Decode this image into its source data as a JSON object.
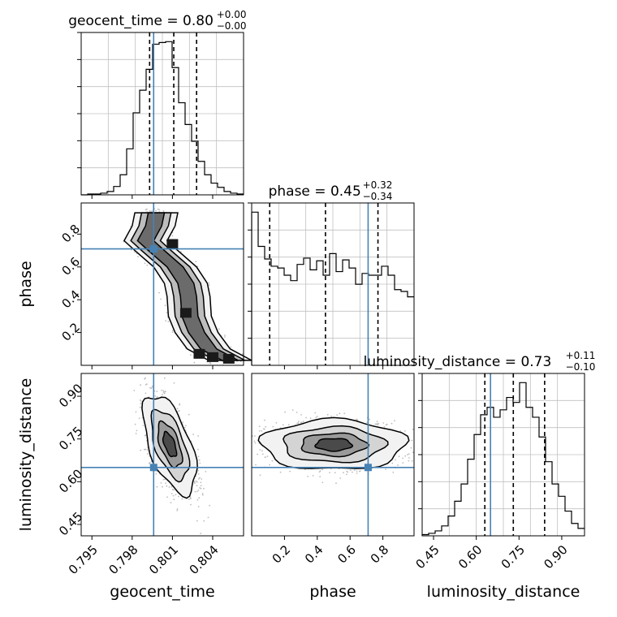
{
  "chart_data": {
    "type": "corner",
    "parameters": [
      "geocent_time",
      "phase",
      "luminosity_distance"
    ],
    "truths": {
      "geocent_time": 0.7996,
      "phase": 0.71,
      "luminosity_distance": 0.65
    },
    "colors": {
      "truth": "#4682b4",
      "hist": "#000000",
      "grid": "#c0c0c0",
      "scatter": "#bdbdbd"
    },
    "titles": {
      "geocent_time": {
        "prefix": "geocent_time = 0.80",
        "plus": "+0.00",
        "minus": "−0.00"
      },
      "phase": {
        "prefix": "phase = 0.45",
        "plus": "+0.32",
        "minus": "−0.34"
      },
      "luminosity_distance": {
        "prefix": "luminosity_distance = 0.73",
        "plus": "+0.11",
        "minus": "−0.10"
      }
    },
    "axis_labels": {
      "x": [
        "geocent_time",
        "phase",
        "luminosity_distance"
      ],
      "y": [
        "phase",
        "luminosity_distance"
      ]
    },
    "ticks": {
      "geocent_time": [
        "0.795",
        "0.798",
        "0.801",
        "0.804"
      ],
      "phase": [
        "0.2",
        "0.4",
        "0.6",
        "0.8"
      ],
      "luminosity_distance": [
        "0.45",
        "0.60",
        "0.75",
        "0.90"
      ]
    },
    "ranges": {
      "geocent_time": [
        0.7942,
        0.8063
      ],
      "phase": [
        0.0,
        0.99
      ],
      "luminosity_distance": [
        0.41,
        0.98
      ]
    },
    "quantiles": {
      "geocent_time": [
        0.7993,
        0.8011,
        0.8028
      ],
      "phase": [
        0.11,
        0.45,
        0.77
      ],
      "luminosity_distance": [
        0.63,
        0.73,
        0.84
      ]
    },
    "histograms": {
      "geocent_time": [
        0,
        1,
        1,
        2,
        4,
        10,
        24,
        55,
        98,
        125,
        150,
        180,
        182,
        183,
        152,
        110,
        84,
        64,
        40,
        24,
        14,
        9,
        4,
        2,
        1
      ],
      "phase": [
        170,
        132,
        118,
        110,
        108,
        100,
        94,
        112,
        119,
        106,
        116,
        100,
        124,
        104,
        117,
        108,
        90,
        102,
        100,
        100,
        110,
        100,
        84,
        82,
        76
      ],
      "luminosity_distance": [
        1,
        2,
        4,
        8,
        16,
        28,
        42,
        62,
        82,
        98,
        104,
        96,
        102,
        112,
        108,
        124,
        104,
        96,
        80,
        60,
        42,
        32,
        20,
        10,
        6
      ]
    },
    "contour_centers": {
      "phase_vs_geocent_time": [
        [
          0.8053,
          0.03
        ],
        [
          0.8037,
          0.1
        ],
        [
          0.8028,
          0.2
        ],
        [
          0.8023,
          0.3
        ],
        [
          0.8022,
          0.42
        ],
        [
          0.802,
          0.5
        ],
        [
          0.8012,
          0.6
        ],
        [
          0.7998,
          0.7
        ],
        [
          0.799,
          0.76
        ],
        [
          0.7996,
          0.85
        ],
        [
          0.7998,
          0.93
        ]
      ],
      "luminosity_distance_vs_geocent_time": [
        [
          0.8008,
          0.73
        ]
      ],
      "luminosity_distance_vs_phase": [
        [
          0.5,
          0.73
        ]
      ]
    }
  }
}
